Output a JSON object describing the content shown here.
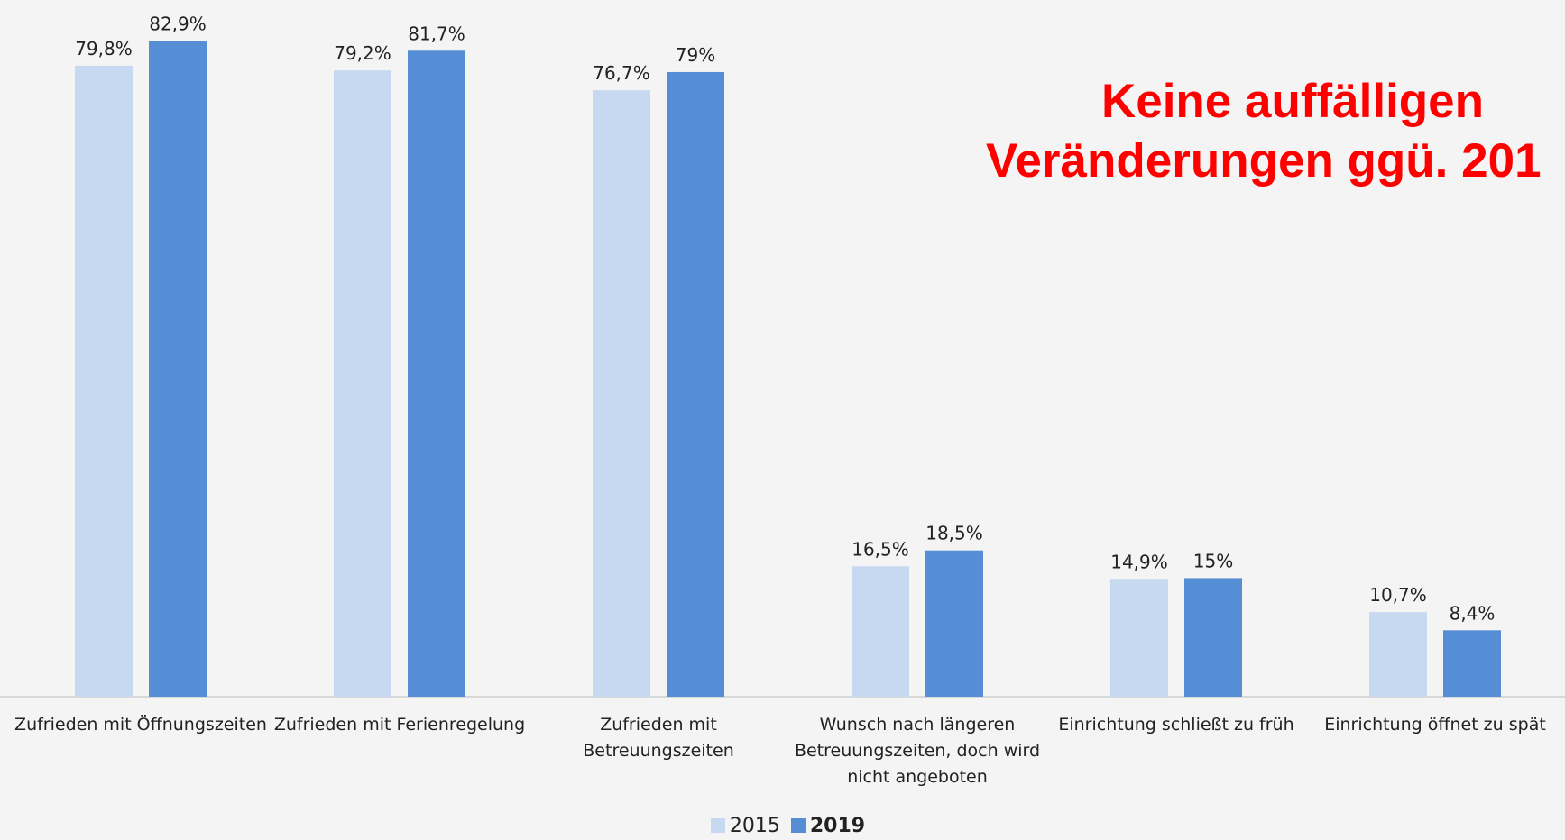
{
  "chart_data": {
    "type": "bar",
    "annotation": [
      "Keine auffälligen",
      "Veränderungen ggü. 201"
    ],
    "categories": [
      "Zufrieden mit Öffnungszeiten",
      "Zufrieden mit Ferienregelung",
      "Zufrieden mit Betreuungszeiten",
      "Wunsch nach längeren Betreuungszeiten, doch wird nicht angeboten",
      "Einrichtung schließt zu früh",
      "Einrichtung öffnet zu spät"
    ],
    "series": [
      {
        "name": "2015",
        "color": "#c7d9f1",
        "values": [
          79.8,
          79.2,
          76.7,
          16.5,
          14.9,
          10.7
        ],
        "value_labels": [
          "79,8%",
          "79,2%",
          "76,7%",
          "16,5%",
          "14,9%",
          "10,7%"
        ]
      },
      {
        "name": "2019",
        "color": "#558ed5",
        "values": [
          82.9,
          81.7,
          79,
          18.5,
          15,
          8.4
        ],
        "value_labels": [
          "82,9%",
          "81,7%",
          "79%",
          "18,5%",
          "15%",
          "8,4%"
        ]
      }
    ],
    "ylim": [
      0,
      88
    ]
  }
}
